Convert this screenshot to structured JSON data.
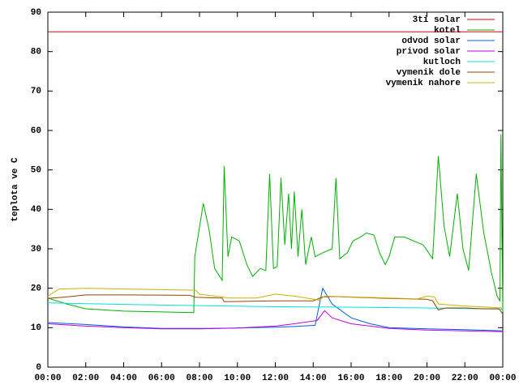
{
  "chart_data": {
    "type": "line",
    "ylabel": "teplota ve C",
    "xlim": [
      0,
      24
    ],
    "xticks": [
      {
        "value": 0,
        "label": "00:00"
      },
      {
        "value": 2,
        "label": "02:00"
      },
      {
        "value": 4,
        "label": "04:00"
      },
      {
        "value": 6,
        "label": "06:00"
      },
      {
        "value": 8,
        "label": "08:00"
      },
      {
        "value": 10,
        "label": "10:00"
      },
      {
        "value": 12,
        "label": "12:00"
      },
      {
        "value": 14,
        "label": "14:00"
      },
      {
        "value": 16,
        "label": "16:00"
      },
      {
        "value": 18,
        "label": "18:00"
      },
      {
        "value": 20,
        "label": "20:00"
      },
      {
        "value": 22,
        "label": "22:00"
      },
      {
        "value": 24,
        "label": "00:00"
      }
    ],
    "ylim": [
      0,
      90
    ],
    "yticks": [
      0,
      10,
      20,
      30,
      40,
      50,
      60,
      70,
      80,
      90
    ],
    "grid": false,
    "legend": "top-right",
    "series": [
      {
        "name": "3ti solar",
        "color": "#e00000",
        "x": [
          0,
          24
        ],
        "values": [
          85,
          85
        ]
      },
      {
        "name": "kotel",
        "color": "#00b000",
        "x": [
          0,
          1,
          2,
          4,
          6,
          7.7,
          7.75,
          8.2,
          8.5,
          8.8,
          9.2,
          9.3,
          9.5,
          9.7,
          10.1,
          10.5,
          10.8,
          11.2,
          11.5,
          11.7,
          11.9,
          12.1,
          12.3,
          12.5,
          12.7,
          12.85,
          13.0,
          13.2,
          13.4,
          13.6,
          13.9,
          14.1,
          14.5,
          15.0,
          15.2,
          15.4,
          15.8,
          16.1,
          16.5,
          16.8,
          17.2,
          17.5,
          17.8,
          18.0,
          18.3,
          18.8,
          19.3,
          19.8,
          20.3,
          20.6,
          20.9,
          21.2,
          21.6,
          21.9,
          22.2,
          22.6,
          23.0,
          23.4,
          23.7,
          23.85,
          23.9,
          24
        ],
        "values": [
          17.5,
          16,
          14.8,
          14.2,
          14,
          13.8,
          28,
          41.5,
          35,
          25,
          22,
          51,
          28,
          33,
          32,
          26,
          23,
          25,
          24.5,
          49,
          25,
          25.5,
          48,
          31,
          44,
          30,
          44.5,
          28,
          40,
          26,
          33,
          28,
          29,
          30,
          48,
          27.5,
          29,
          32,
          33,
          34,
          33.5,
          29,
          26,
          28,
          33,
          33,
          32,
          31,
          27.5,
          53.5,
          36,
          28,
          44,
          30,
          24.5,
          49,
          34,
          24,
          18,
          16.8,
          59,
          14
        ]
      },
      {
        "name": "odvod solar",
        "color": "#0060e0",
        "x": [
          0,
          2,
          4,
          6,
          8,
          10,
          12,
          13,
          14.1,
          14.5,
          15,
          16,
          17,
          18,
          20,
          22,
          24
        ],
        "values": [
          11.3,
          10.8,
          10.2,
          9.8,
          9.8,
          9.9,
          10.1,
          10.3,
          10.6,
          20,
          16,
          12.5,
          11,
          10,
          9.7,
          9.5,
          9.2
        ]
      },
      {
        "name": "privod solar",
        "color": "#c000e0",
        "x": [
          0,
          2,
          4,
          6,
          8,
          10,
          12,
          13,
          14,
          14.2,
          14.6,
          15,
          16,
          17,
          18,
          20,
          22,
          24
        ],
        "values": [
          11,
          10.4,
          10,
          9.7,
          9.7,
          9.9,
          10.4,
          11,
          11.7,
          11.8,
          14.3,
          12.5,
          11,
          10.4,
          9.8,
          9.4,
          9.2,
          9
        ]
      },
      {
        "name": "kutloch",
        "color": "#00e0e0",
        "x": [
          0,
          4,
          8,
          12,
          16,
          20,
          24
        ],
        "values": [
          16.3,
          15.9,
          15.6,
          15.3,
          15.2,
          15,
          14.7
        ]
      },
      {
        "name": "vymenik dole",
        "color": "#a04000",
        "x": [
          0,
          1,
          2,
          4,
          7.5,
          7.8,
          9.2,
          9.3,
          12,
          14,
          14.5,
          15,
          18,
          20,
          20.3,
          20.6,
          21,
          22,
          23,
          23.8,
          24
        ],
        "values": [
          17.4,
          17.8,
          18.3,
          18.3,
          18.2,
          17.7,
          17.5,
          16.6,
          16.8,
          16.8,
          17.8,
          17.9,
          17.4,
          17.2,
          16.8,
          14.5,
          15,
          15,
          14.8,
          14.8,
          13.5
        ]
      },
      {
        "name": "vymenik nahore",
        "color": "#c8b400",
        "x": [
          0,
          0.6,
          2,
          4,
          7.8,
          8,
          9.2,
          9.5,
          11,
          12,
          13,
          14.3,
          14.6,
          16,
          18,
          19.5,
          20,
          20.4,
          20.6,
          22,
          24
        ],
        "values": [
          18,
          19.8,
          20,
          19.8,
          19.5,
          18.5,
          17.8,
          17.5,
          17.5,
          18.5,
          18,
          17,
          18,
          17.8,
          17.5,
          17.3,
          18,
          17.8,
          16,
          15.5,
          15
        ]
      }
    ]
  }
}
